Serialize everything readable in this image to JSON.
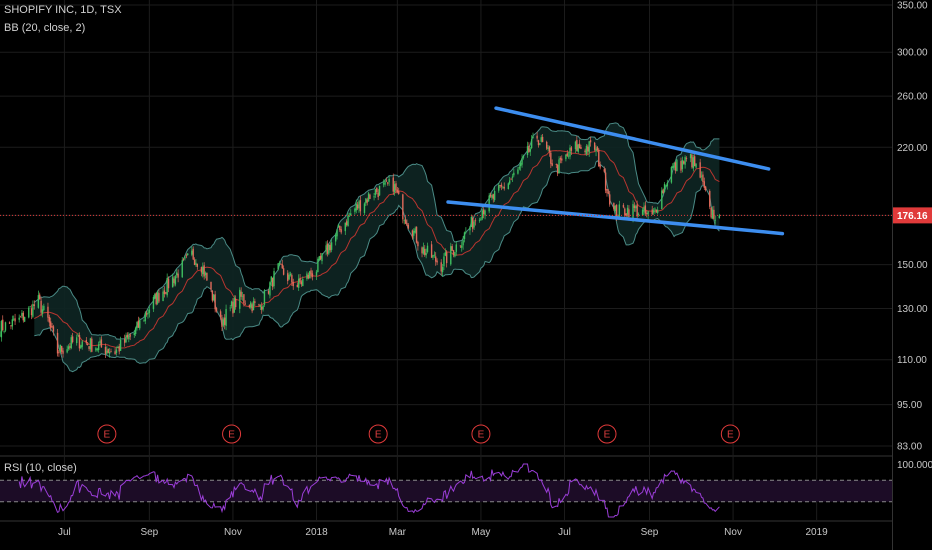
{
  "legend": {
    "symbol": "SHOPIFY INC, 1D, TSX",
    "bb": "BB (20, close, 2)",
    "rsi": "RSI (10, close)"
  },
  "colors": {
    "background": "#000000",
    "grid": "#1c1c1c",
    "candle_up": "#3fbf5f",
    "candle_down": "#e26a5a",
    "bb_band": "#4a8a85",
    "bb_fill": "#0e2624",
    "bb_basis": "#b8352f",
    "trendline": "#3d8ef0",
    "last_price": "#e03a3a",
    "earnings": "#e03a3a",
    "rsi_line": "#9b3ed8",
    "rsi_fill": "#1c0c26"
  },
  "chart_data": {
    "type": "candlestick",
    "y_axis": {
      "ticks": [
        83,
        95,
        110,
        130,
        150,
        176.16,
        220,
        260,
        300,
        350
      ],
      "tick_labels": [
        "83.00",
        "95.00",
        "110.00",
        "130.00",
        "150.00",
        "220.00",
        "260.00",
        "300.00",
        "350.00"
      ],
      "scale": "log",
      "range": [
        83,
        350
      ]
    },
    "x_axis": {
      "tick_labels": [
        "Jul",
        "Sep",
        "Nov",
        "2018",
        "Mar",
        "May",
        "Jul",
        "Sep",
        "Nov",
        "2019"
      ],
      "range": [
        "2017-05-15",
        "2019-02-25"
      ]
    },
    "last_price": {
      "value": 176.16,
      "label": "176.16"
    },
    "close_path": [
      [
        "2017-05-15",
        122
      ],
      [
        "2017-05-29",
        125
      ],
      [
        "2017-06-12",
        133
      ],
      [
        "2017-06-19",
        125
      ],
      [
        "2017-06-26",
        113
      ],
      [
        "2017-07-10",
        117
      ],
      [
        "2017-07-24",
        115
      ],
      [
        "2017-08-07",
        113
      ],
      [
        "2017-08-21",
        120
      ],
      [
        "2017-09-04",
        133
      ],
      [
        "2017-09-18",
        143
      ],
      [
        "2017-10-02",
        155
      ],
      [
        "2017-10-09",
        150
      ],
      [
        "2017-10-23",
        124
      ],
      [
        "2017-11-06",
        135
      ],
      [
        "2017-11-20",
        130
      ],
      [
        "2017-12-04",
        148
      ],
      [
        "2017-12-18",
        140
      ],
      [
        "2018-01-01",
        148
      ],
      [
        "2018-01-15",
        165
      ],
      [
        "2018-01-29",
        180
      ],
      [
        "2018-02-12",
        190
      ],
      [
        "2018-02-26",
        195
      ],
      [
        "2018-03-05",
        178
      ],
      [
        "2018-03-19",
        158
      ],
      [
        "2018-04-02",
        150
      ],
      [
        "2018-04-16",
        162
      ],
      [
        "2018-04-30",
        178
      ],
      [
        "2018-05-14",
        190
      ],
      [
        "2018-05-28",
        203
      ],
      [
        "2018-06-11",
        228
      ],
      [
        "2018-06-25",
        205
      ],
      [
        "2018-07-09",
        220
      ],
      [
        "2018-07-23",
        220
      ],
      [
        "2018-08-06",
        178
      ],
      [
        "2018-08-20",
        180
      ],
      [
        "2018-09-03",
        175
      ],
      [
        "2018-09-17",
        205
      ],
      [
        "2018-10-01",
        212
      ],
      [
        "2018-10-08",
        200
      ],
      [
        "2018-10-15",
        178
      ],
      [
        "2018-10-22",
        176.16
      ]
    ],
    "bollinger": {
      "period": 20,
      "source": "close",
      "stddev": 2
    },
    "trendlines": [
      {
        "name": "upper",
        "from": [
          "2018-05-12",
          250
        ],
        "to": [
          "2018-11-27",
          205
        ]
      },
      {
        "name": "lower",
        "from": [
          "2018-04-07",
          184
        ],
        "to": [
          "2018-12-07",
          166
        ]
      }
    ],
    "earnings_markers": {
      "label": "E",
      "dates": [
        "2017-08-01",
        "2017-10-31",
        "2018-02-15",
        "2018-05-01",
        "2018-08-01",
        "2018-10-30"
      ]
    },
    "rsi": {
      "period": 10,
      "source": "close",
      "levels": [
        70,
        30
      ],
      "top_label": "100.0000"
    }
  }
}
